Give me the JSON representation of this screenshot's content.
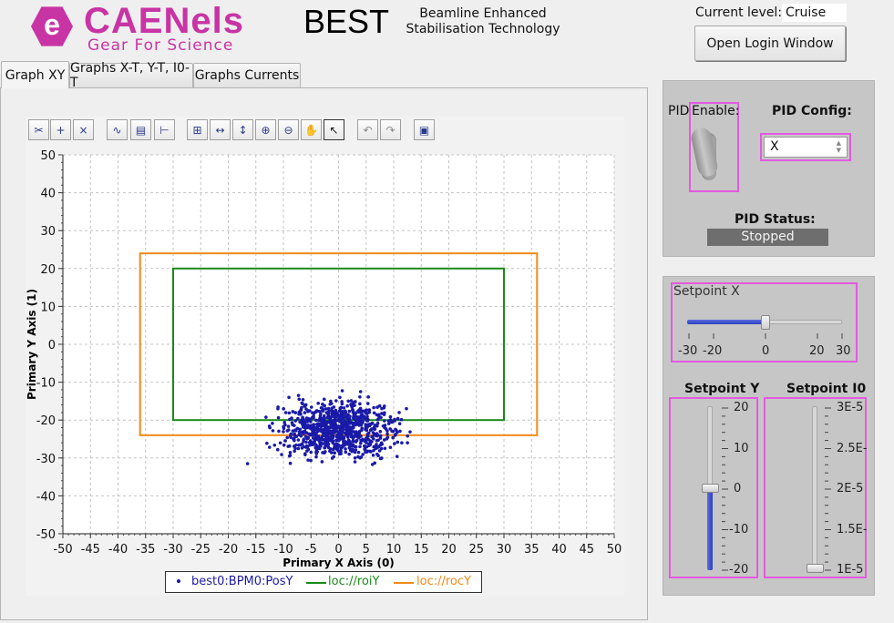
{
  "header": {
    "logo_mark": "e",
    "logo_name": "CAENels",
    "logo_tagline": "Gear For Science",
    "app_title": "BEST",
    "app_subtitle_line1": "Beamline Enhanced",
    "app_subtitle_line2": "Stabilisation Technology",
    "current_level_label": "Current level:",
    "current_level_value": "Cruise",
    "login_button": "Open Login Window"
  },
  "tabs": [
    {
      "label": "Graph XY",
      "active": true
    },
    {
      "label": "Graphs X-T, Y-T, I0-T",
      "active": false
    },
    {
      "label": "Graphs Currents",
      "active": false
    }
  ],
  "toolbar": {
    "icons": [
      "scissors-icon",
      "add-marker-icon",
      "remove-marker-icon",
      "curve-fit-icon",
      "image-icon",
      "cursor-line-icon",
      "zoom-box-icon",
      "zoom-x-icon",
      "zoom-y-icon",
      "zoom-in-icon",
      "zoom-out-icon",
      "pan-hand-icon",
      "pointer-icon",
      "undo-icon",
      "redo-icon",
      "snapshot-icon"
    ]
  },
  "pid": {
    "enable_label": "Enable:",
    "enable_prefix": "PID",
    "enable_value": false,
    "config_label": "PID Config:",
    "config_value": "X",
    "status_label": "PID Status:",
    "status_value": "Stopped"
  },
  "setpoints": {
    "x": {
      "label": "Setpoint X",
      "min": -30,
      "max": 30,
      "value": 0,
      "ticks": [
        "-30",
        "-20",
        "0",
        "20",
        "30"
      ]
    },
    "y": {
      "label": "Setpoint Y",
      "min": -20,
      "max": 20,
      "value": 0,
      "ticks": [
        "20",
        "10",
        "0",
        "-10",
        "-20"
      ]
    },
    "i0": {
      "label": "Setpoint I0",
      "min": 1e-05,
      "max": 3e-05,
      "value": 1e-05,
      "ticks": [
        "3E-5",
        "2.5E-",
        "2E-5",
        "1.5E-",
        "1E-5"
      ]
    }
  },
  "chart_data": {
    "type": "scatter",
    "title": "",
    "xlabel": "Primary X Axis (0)",
    "ylabel": "Primary Y Axis (1)",
    "xlim": [
      -50,
      50
    ],
    "ylim": [
      -50,
      50
    ],
    "x_ticks": [
      "-50",
      "-45",
      "-40",
      "-35",
      "-30",
      "-25",
      "-20",
      "-15",
      "-10",
      "-5",
      "0",
      "5",
      "10",
      "15",
      "20",
      "25",
      "30",
      "35",
      "40",
      "45",
      "50"
    ],
    "y_ticks": [
      "50",
      "40",
      "30",
      "20",
      "10",
      "0",
      "-10",
      "-20",
      "-30",
      "-40",
      "-50"
    ],
    "grid": true,
    "legend_position": "bottom",
    "series": [
      {
        "name": "best0:BPM0:PosY",
        "kind": "scatter",
        "color": "#1a1aa8",
        "center": [
          0,
          -22.5
        ],
        "spread": [
          5,
          3.5
        ],
        "points": [
          [
            -16.5,
            -31.5
          ],
          [
            -11,
            -17
          ],
          [
            -9,
            -14
          ],
          [
            4,
            -12.5
          ],
          [
            12.5,
            -26
          ],
          [
            11,
            -18
          ],
          [
            -5,
            -28.5
          ],
          [
            3,
            -30
          ],
          [
            -3,
            -31
          ],
          [
            7,
            -29
          ]
        ]
      },
      {
        "name": "loc://roiY",
        "kind": "rectangle",
        "color": "#1a8a1a",
        "x": [
          -30,
          30
        ],
        "y": [
          -20,
          20
        ]
      },
      {
        "name": "loc://rocY",
        "kind": "rectangle",
        "color": "#f08a1a",
        "x": [
          -36,
          36
        ],
        "y": [
          -24,
          24
        ]
      }
    ]
  },
  "colors": {
    "accent_pink": "#e35ae0",
    "logo_magenta": "#c934a5",
    "status_bg": "#6e6e6e"
  }
}
